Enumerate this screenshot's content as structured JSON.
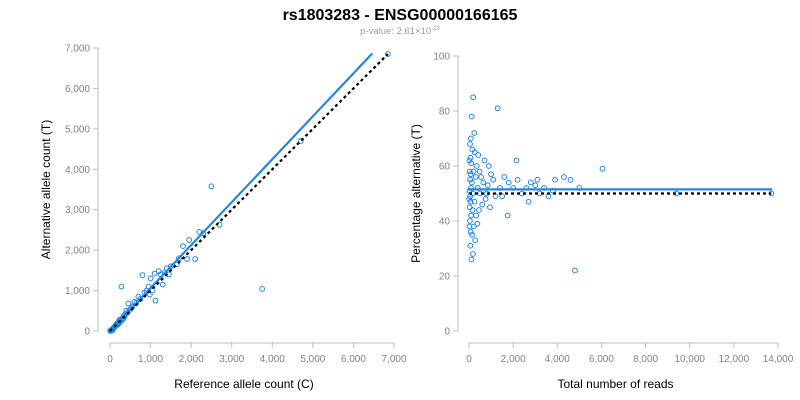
{
  "header": {
    "title": "rs1803283 - ENSG00000166165",
    "pvalue_prefix": "p-value: 2.61×10",
    "pvalue_exponent": "-23"
  },
  "colors": {
    "point": "#1f86e6",
    "fit_line": "#2a86dd",
    "reference_line": "#000000",
    "axis": "#bdbdbd",
    "tick_label": "#808080"
  },
  "chart_data": [
    {
      "type": "scatter",
      "title": "",
      "xlabel": "Reference allele count (C)",
      "ylabel": "Alternative allele count (T)",
      "xlim": [
        0,
        7000
      ],
      "ylim": [
        0,
        7000
      ],
      "xticks": [
        0,
        1000,
        2000,
        3000,
        4000,
        5000,
        6000,
        7000
      ],
      "yticks": [
        0,
        1000,
        2000,
        3000,
        4000,
        5000,
        6000,
        7000
      ],
      "xtick_labels": [
        "0",
        "1,000",
        "2,000",
        "3,000",
        "4,000",
        "5,000",
        "6,000",
        "7,000"
      ],
      "ytick_labels": [
        "0",
        "1,000",
        "2,000",
        "3,000",
        "4,000",
        "5,000",
        "6,000",
        "7,000"
      ],
      "points": [
        [
          6850,
          6850
        ],
        [
          4700,
          4700
        ],
        [
          3750,
          1040
        ],
        [
          2500,
          3580
        ],
        [
          2700,
          2630
        ],
        [
          2300,
          2420
        ],
        [
          2200,
          2450
        ],
        [
          1950,
          2250
        ],
        [
          1800,
          2100
        ],
        [
          1900,
          1780
        ],
        [
          2100,
          1780
        ],
        [
          1700,
          1800
        ],
        [
          1650,
          1650
        ],
        [
          1500,
          1600
        ],
        [
          1400,
          1550
        ],
        [
          1350,
          1450
        ],
        [
          1250,
          1400
        ],
        [
          1200,
          1480
        ],
        [
          1100,
          1420
        ],
        [
          1000,
          1300
        ],
        [
          950,
          1100
        ],
        [
          900,
          1000
        ],
        [
          850,
          950
        ],
        [
          800,
          1380
        ],
        [
          750,
          800
        ],
        [
          700,
          850
        ],
        [
          650,
          700
        ],
        [
          600,
          720
        ],
        [
          550,
          600
        ],
        [
          520,
          560
        ],
        [
          480,
          520
        ],
        [
          450,
          680
        ],
        [
          430,
          450
        ],
        [
          400,
          500
        ],
        [
          380,
          420
        ],
        [
          360,
          350
        ],
        [
          340,
          380
        ],
        [
          320,
          300
        ],
        [
          300,
          310
        ],
        [
          290,
          260
        ],
        [
          280,
          1100
        ],
        [
          260,
          240
        ],
        [
          240,
          280
        ],
        [
          230,
          200
        ],
        [
          220,
          250
        ],
        [
          210,
          180
        ],
        [
          200,
          200
        ],
        [
          190,
          160
        ],
        [
          180,
          190
        ],
        [
          170,
          150
        ],
        [
          160,
          170
        ],
        [
          150,
          130
        ],
        [
          140,
          140
        ],
        [
          130,
          120
        ],
        [
          120,
          110
        ],
        [
          110,
          100
        ],
        [
          100,
          90
        ],
        [
          95,
          80
        ],
        [
          90,
          70
        ],
        [
          85,
          60
        ],
        [
          80,
          50
        ],
        [
          75,
          40
        ],
        [
          70,
          30
        ],
        [
          65,
          55
        ],
        [
          60,
          35
        ],
        [
          55,
          25
        ],
        [
          50,
          20
        ],
        [
          45,
          15
        ],
        [
          40,
          10
        ],
        [
          35,
          30
        ],
        [
          30,
          20
        ],
        [
          25,
          10
        ],
        [
          20,
          5
        ],
        [
          15,
          12
        ],
        [
          10,
          8
        ],
        [
          5,
          3
        ],
        [
          1300,
          1150
        ],
        [
          1450,
          1400
        ],
        [
          1050,
          1000
        ],
        [
          980,
          900
        ],
        [
          1120,
          750
        ]
      ],
      "fit_line": [
        [
          0,
          0
        ],
        [
          6450,
          6850
        ]
      ],
      "reference_line": [
        [
          0,
          0
        ],
        [
          6850,
          6850
        ]
      ]
    },
    {
      "type": "scatter",
      "title": "",
      "xlabel": "Total number of reads",
      "ylabel": "Percentage alternative (T)",
      "xlim": [
        0,
        14000
      ],
      "ylim": [
        0,
        100
      ],
      "xticks": [
        0,
        2000,
        4000,
        6000,
        8000,
        10000,
        12000,
        14000
      ],
      "yticks": [
        0,
        20,
        40,
        60,
        80,
        100
      ],
      "xtick_labels": [
        "0",
        "2,000",
        "4,000",
        "6,000",
        "8,000",
        "10,000",
        "12,000",
        "14,000"
      ],
      "ytick_labels": [
        "0",
        "20",
        "40",
        "60",
        "80",
        "100"
      ],
      "points": [
        [
          13700,
          50
        ],
        [
          9400,
          50
        ],
        [
          6050,
          59
        ],
        [
          4800,
          22
        ],
        [
          5000,
          52
        ],
        [
          4600,
          55
        ],
        [
          4300,
          56
        ],
        [
          3800,
          51
        ],
        [
          3600,
          49
        ],
        [
          3400,
          52
        ],
        [
          3200,
          50
        ],
        [
          3000,
          53
        ],
        [
          2800,
          54
        ],
        [
          2600,
          52
        ],
        [
          2400,
          50
        ],
        [
          2200,
          55
        ],
        [
          2000,
          52
        ],
        [
          1800,
          54
        ],
        [
          1600,
          56
        ],
        [
          1400,
          52
        ],
        [
          1300,
          81
        ],
        [
          1200,
          49
        ],
        [
          1100,
          55
        ],
        [
          1000,
          57
        ],
        [
          950,
          45
        ],
        [
          900,
          60
        ],
        [
          850,
          53
        ],
        [
          800,
          50
        ],
        [
          750,
          48
        ],
        [
          700,
          62
        ],
        [
          650,
          54
        ],
        [
          600,
          46
        ],
        [
          550,
          56
        ],
        [
          500,
          50
        ],
        [
          480,
          58
        ],
        [
          450,
          44
        ],
        [
          420,
          64
        ],
        [
          400,
          52
        ],
        [
          380,
          39
        ],
        [
          350,
          60
        ],
        [
          320,
          42
        ],
        [
          300,
          56
        ],
        [
          280,
          33
        ],
        [
          260,
          65
        ],
        [
          250,
          47
        ],
        [
          240,
          72
        ],
        [
          220,
          38
        ],
        [
          200,
          58
        ],
        [
          190,
          85
        ],
        [
          180,
          28
        ],
        [
          170,
          50
        ],
        [
          160,
          44
        ],
        [
          150,
          66
        ],
        [
          140,
          35
        ],
        [
          130,
          54
        ],
        [
          120,
          78
        ],
        [
          110,
          26
        ],
        [
          100,
          61
        ],
        [
          95,
          42
        ],
        [
          90,
          52
        ],
        [
          85,
          70
        ],
        [
          80,
          36
        ],
        [
          75,
          57
        ],
        [
          70,
          47
        ],
        [
          65,
          63
        ],
        [
          60,
          31
        ],
        [
          55,
          55
        ],
        [
          50,
          49
        ],
        [
          45,
          68
        ],
        [
          40,
          40
        ],
        [
          35,
          58
        ],
        [
          30,
          45
        ],
        [
          25,
          51
        ],
        [
          20,
          38
        ],
        [
          15,
          62
        ],
        [
          10,
          48
        ],
        [
          2150,
          62
        ],
        [
          1750,
          42
        ],
        [
          2700,
          47
        ],
        [
          3100,
          55
        ],
        [
          1500,
          49
        ],
        [
          3900,
          55
        ]
      ],
      "fit_line": [
        [
          0,
          51.5
        ],
        [
          13700,
          51.5
        ]
      ],
      "reference_line": [
        [
          0,
          50
        ],
        [
          13700,
          50
        ]
      ]
    }
  ]
}
